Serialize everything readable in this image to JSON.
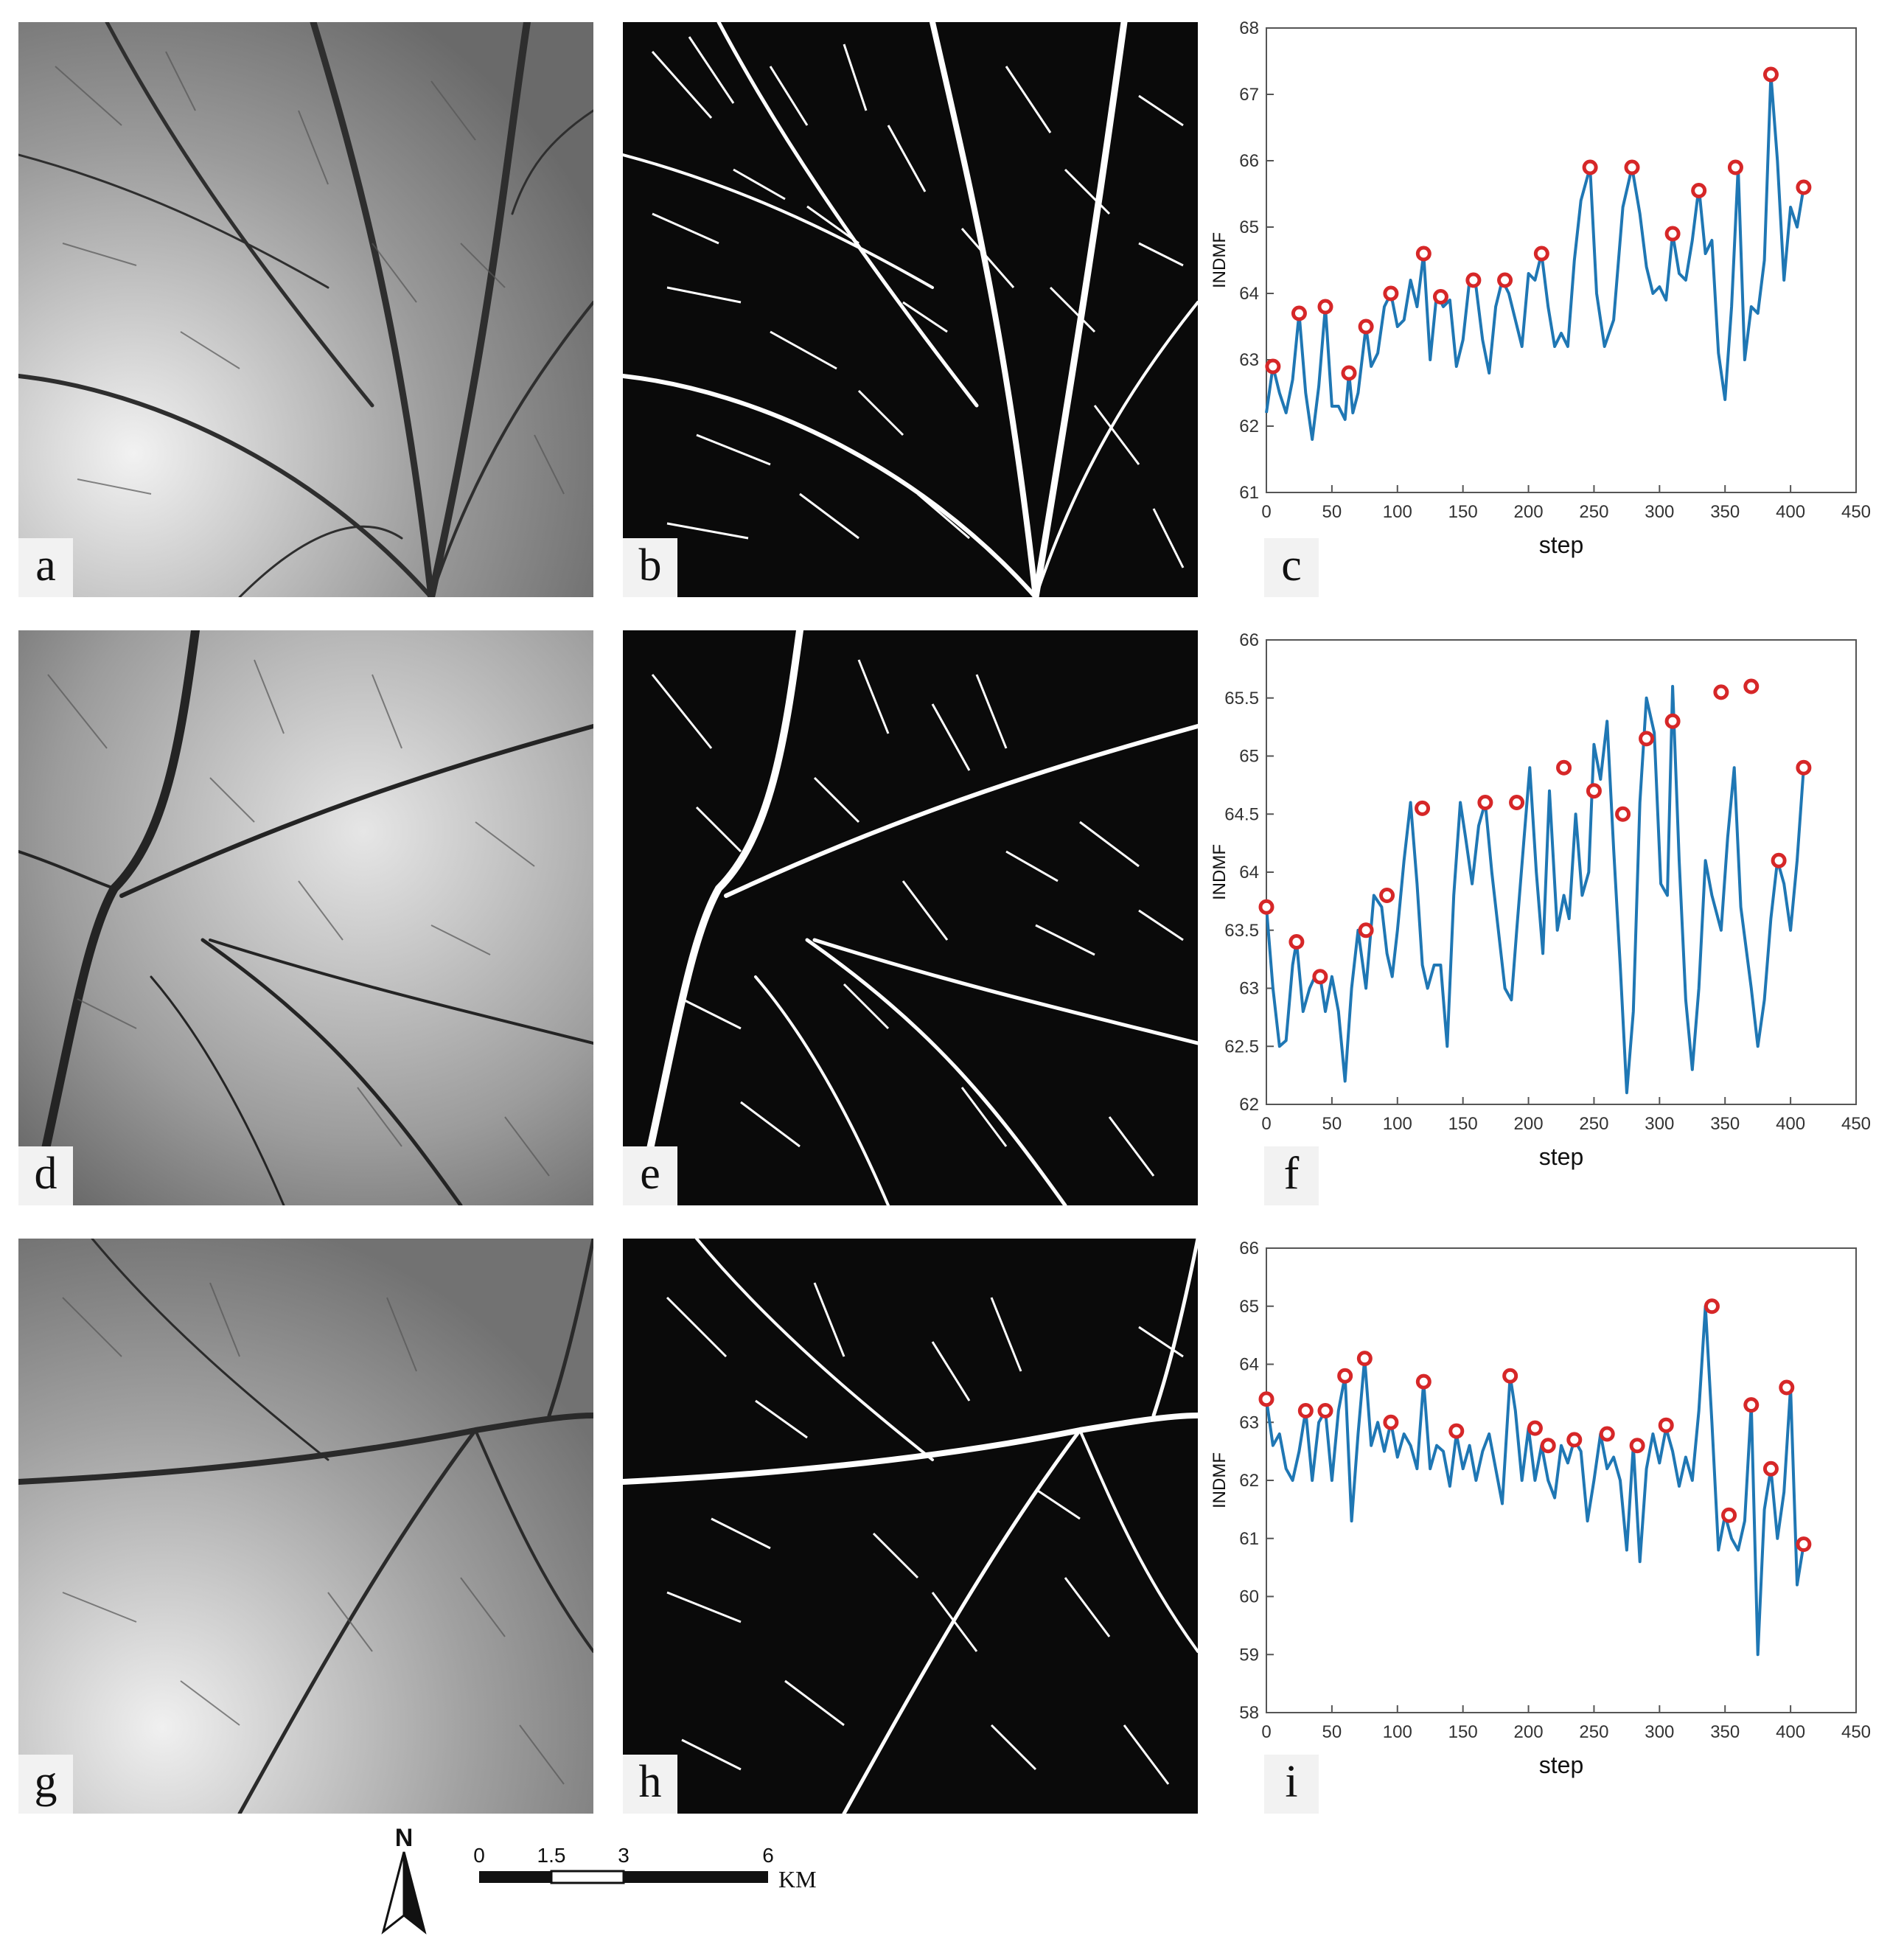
{
  "panels": {
    "a": "a",
    "b": "b",
    "c": "c",
    "d": "d",
    "e": "e",
    "f": "f",
    "g": "g",
    "h": "h",
    "i": "i"
  },
  "colors": {
    "line": "#1f77b4",
    "marker": "#d62728",
    "axis": "#333333"
  },
  "chart_data": [
    {
      "type": "line",
      "panel": "c",
      "xlabel": "step",
      "ylabel": "INDMF",
      "xlim": [
        0,
        450
      ],
      "ylim": [
        61,
        68
      ],
      "xticks": [
        0,
        50,
        100,
        150,
        200,
        250,
        300,
        350,
        400,
        450
      ],
      "yticks": [
        61,
        62,
        63,
        64,
        65,
        66,
        67,
        68
      ],
      "series": [
        {
          "x": [
            0,
            5,
            10,
            15,
            20,
            25,
            30,
            35,
            40,
            45,
            50,
            55,
            60,
            63,
            66,
            70,
            76,
            80,
            85,
            90,
            95,
            100,
            105,
            110,
            115,
            120,
            125,
            130,
            135,
            140,
            145,
            150,
            155,
            160,
            165,
            170,
            175,
            180,
            185,
            190,
            195,
            200,
            205,
            210,
            215,
            220,
            225,
            230,
            235,
            240,
            247,
            252,
            258,
            265,
            272,
            279,
            285,
            290,
            295,
            300,
            305,
            310,
            315,
            320,
            325,
            330,
            335,
            340,
            345,
            350,
            355,
            360,
            365,
            370,
            375,
            380,
            385,
            390,
            395,
            400,
            405,
            410
          ],
          "y": [
            62.2,
            62.9,
            62.5,
            62.2,
            62.7,
            63.7,
            62.5,
            61.8,
            62.6,
            63.8,
            62.3,
            62.3,
            62.1,
            62.8,
            62.2,
            62.5,
            63.5,
            62.9,
            63.1,
            63.8,
            64.0,
            63.5,
            63.6,
            64.2,
            63.8,
            64.6,
            63.0,
            64.0,
            63.8,
            63.9,
            62.9,
            63.3,
            64.2,
            64.1,
            63.3,
            62.8,
            63.8,
            64.2,
            64.0,
            63.6,
            63.2,
            64.3,
            64.2,
            64.6,
            63.8,
            63.2,
            63.4,
            63.2,
            64.5,
            65.4,
            65.9,
            64.0,
            63.2,
            63.6,
            65.3,
            65.9,
            65.2,
            64.4,
            64.0,
            64.1,
            63.9,
            64.9,
            64.3,
            64.2,
            64.8,
            65.6,
            64.6,
            64.8,
            63.1,
            62.4,
            63.8,
            65.9,
            63.0,
            63.8,
            63.7,
            64.5,
            67.3,
            66.0,
            64.2,
            65.3,
            65.0,
            65.6
          ]
        }
      ],
      "peaks_x": [
        5,
        25,
        45,
        63,
        76,
        95,
        120,
        133,
        158,
        182,
        210,
        247,
        279,
        310,
        330,
        358,
        385,
        410
      ],
      "peaks_y": [
        62.9,
        63.7,
        63.8,
        62.8,
        63.5,
        64.0,
        64.6,
        63.95,
        64.2,
        64.2,
        64.6,
        65.9,
        65.9,
        64.9,
        65.55,
        65.9,
        67.3,
        65.6
      ]
    },
    {
      "type": "line",
      "panel": "f",
      "xlabel": "step",
      "ylabel": "INDMF",
      "xlim": [
        0,
        450
      ],
      "ylim": [
        62,
        66
      ],
      "xticks": [
        0,
        50,
        100,
        150,
        200,
        250,
        300,
        350,
        400,
        450
      ],
      "yticks": [
        62,
        62.5,
        63,
        63.5,
        64,
        64.5,
        65,
        65.5,
        66
      ],
      "series": [
        {
          "x": [
            0,
            5,
            10,
            15,
            20,
            23,
            28,
            33,
            37,
            41,
            45,
            50,
            55,
            60,
            65,
            70,
            76,
            82,
            88,
            92,
            96,
            100,
            105,
            110,
            115,
            119,
            123,
            128,
            133,
            138,
            143,
            148,
            152,
            157,
            162,
            167,
            172,
            177,
            182,
            187,
            191,
            196,
            201,
            206,
            211,
            216,
            222,
            227,
            231,
            236,
            241,
            246,
            250,
            255,
            260,
            265,
            270,
            275,
            280,
            285,
            290,
            296,
            301,
            306,
            310,
            315,
            320,
            325,
            330,
            335,
            340,
            347,
            352,
            357,
            362,
            370,
            375,
            380,
            385,
            390,
            395,
            400,
            405,
            410
          ],
          "y": [
            63.7,
            63.0,
            62.5,
            62.55,
            63.2,
            63.4,
            62.8,
            63.0,
            63.1,
            63.1,
            62.8,
            63.1,
            62.8,
            62.2,
            63.0,
            63.5,
            63.0,
            63.8,
            63.7,
            63.3,
            63.1,
            63.5,
            64.1,
            64.6,
            63.9,
            63.2,
            63.0,
            63.2,
            63.2,
            62.5,
            63.8,
            64.6,
            64.3,
            63.9,
            64.4,
            64.6,
            64.0,
            63.5,
            63.0,
            62.9,
            63.5,
            64.2,
            64.9,
            64.0,
            63.3,
            64.7,
            63.5,
            63.8,
            63.6,
            64.5,
            63.8,
            64.0,
            65.1,
            64.8,
            65.3,
            64.2,
            63.2,
            62.1,
            62.8,
            64.6,
            65.5,
            65.2,
            63.9,
            63.8,
            65.6,
            64.1,
            62.9,
            62.3,
            63.0,
            64.1,
            63.8,
            63.5,
            64.3,
            64.9,
            63.7,
            63.0,
            62.5,
            62.9,
            63.6,
            64.1,
            63.9,
            63.5,
            64.1,
            64.9
          ],
          "note": ""
        }
      ],
      "peaks_x": [
        0,
        23,
        41,
        76,
        92,
        119,
        167,
        191,
        227,
        250,
        272,
        290,
        310,
        347,
        370,
        391,
        410
      ],
      "peaks_y": [
        63.7,
        63.4,
        63.1,
        63.5,
        63.8,
        64.55,
        64.6,
        64.6,
        64.9,
        64.7,
        64.5,
        65.15,
        65.3,
        65.55,
        65.6,
        64.1,
        64.9
      ]
    },
    {
      "type": "line",
      "panel": "i",
      "xlabel": "step",
      "ylabel": "INDMF",
      "xlim": [
        0,
        450
      ],
      "ylim": [
        58,
        66
      ],
      "xticks": [
        0,
        50,
        100,
        150,
        200,
        250,
        300,
        350,
        400,
        450
      ],
      "yticks": [
        58,
        59,
        60,
        61,
        62,
        63,
        64,
        65,
        66
      ],
      "series": [
        {
          "x": [
            0,
            5,
            10,
            15,
            20,
            25,
            30,
            35,
            40,
            45,
            50,
            55,
            60,
            65,
            70,
            75,
            80,
            85,
            90,
            95,
            100,
            105,
            110,
            115,
            120,
            125,
            130,
            135,
            140,
            145,
            150,
            155,
            160,
            165,
            170,
            175,
            180,
            186,
            190,
            195,
            200,
            205,
            210,
            215,
            220,
            225,
            230,
            235,
            240,
            245,
            250,
            255,
            260,
            265,
            270,
            275,
            280,
            285,
            290,
            295,
            300,
            305,
            310,
            315,
            320,
            325,
            330,
            335,
            340,
            345,
            350,
            355,
            360,
            365,
            370,
            375,
            380,
            385,
            390,
            395,
            400,
            405,
            410
          ],
          "y": [
            63.4,
            62.6,
            62.8,
            62.2,
            62.0,
            62.5,
            63.2,
            62.0,
            63.0,
            63.2,
            62.0,
            63.2,
            63.8,
            61.3,
            62.8,
            64.1,
            62.6,
            63.0,
            62.5,
            63.0,
            62.4,
            62.8,
            62.6,
            62.2,
            63.7,
            62.2,
            62.6,
            62.5,
            61.9,
            62.8,
            62.2,
            62.6,
            62.0,
            62.5,
            62.8,
            62.2,
            61.6,
            63.8,
            63.2,
            62.0,
            62.9,
            62.0,
            62.6,
            62.0,
            61.7,
            62.6,
            62.3,
            62.7,
            62.5,
            61.3,
            62.0,
            62.8,
            62.2,
            62.4,
            62.0,
            60.8,
            62.6,
            60.6,
            62.2,
            62.8,
            62.3,
            62.9,
            62.5,
            61.9,
            62.4,
            62.0,
            63.2,
            65.0,
            63.0,
            60.8,
            61.4,
            61.0,
            60.8,
            61.3,
            63.3,
            59.0,
            61.5,
            62.2,
            61.0,
            61.8,
            63.6,
            60.2,
            60.9
          ]
        }
      ],
      "peaks_x": [
        0,
        30,
        45,
        60,
        75,
        95,
        120,
        145,
        186,
        205,
        215,
        235,
        260,
        283,
        305,
        340,
        353,
        370,
        385,
        397,
        410
      ],
      "peaks_y": [
        63.4,
        63.2,
        63.2,
        63.8,
        64.1,
        63.0,
        63.7,
        62.85,
        63.8,
        62.9,
        62.6,
        62.7,
        62.8,
        62.6,
        62.95,
        65.0,
        61.4,
        63.3,
        62.2,
        63.6,
        60.9
      ]
    }
  ],
  "scale_bar": {
    "north_label": "N",
    "ticks": [
      "0",
      "1.5",
      "3",
      "6"
    ],
    "unit": "KM"
  }
}
